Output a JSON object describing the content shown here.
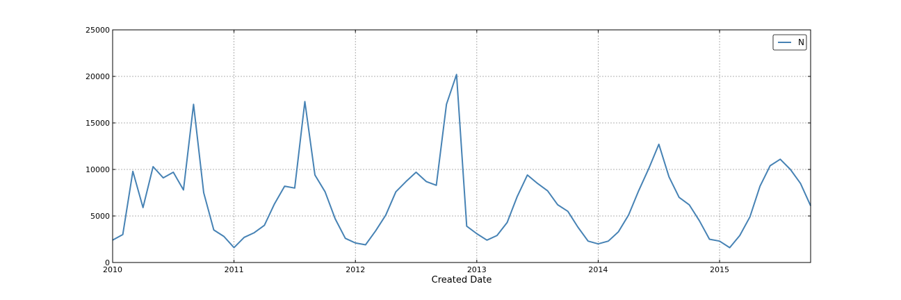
{
  "chart_data": {
    "type": "line",
    "xlabel": "Created Date",
    "ylabel": "",
    "xlim": [
      "2010-01",
      "2015-10"
    ],
    "ylim": [
      0,
      25000
    ],
    "yticks": [
      "0",
      "5000",
      "10000",
      "15000",
      "20000",
      "25000"
    ],
    "xticks": [
      "2010",
      "2011",
      "2012",
      "2013",
      "2014",
      "2015"
    ],
    "grid": true,
    "legend_position": "top-right",
    "line_color": "#4682b4",
    "series": [
      {
        "name": "N",
        "x": [
          "2010-01",
          "2010-02",
          "2010-03",
          "2010-04",
          "2010-05",
          "2010-06",
          "2010-07",
          "2010-08",
          "2010-09",
          "2010-10",
          "2010-11",
          "2010-12",
          "2011-01",
          "2011-02",
          "2011-03",
          "2011-04",
          "2011-05",
          "2011-06",
          "2011-07",
          "2011-08",
          "2011-09",
          "2011-10",
          "2011-11",
          "2011-12",
          "2012-01",
          "2012-02",
          "2012-03",
          "2012-04",
          "2012-05",
          "2012-06",
          "2012-07",
          "2012-08",
          "2012-09",
          "2012-10",
          "2012-11",
          "2012-12",
          "2013-01",
          "2013-02",
          "2013-03",
          "2013-04",
          "2013-05",
          "2013-06",
          "2013-07",
          "2013-08",
          "2013-09",
          "2013-10",
          "2013-11",
          "2013-12",
          "2014-01",
          "2014-02",
          "2014-03",
          "2014-04",
          "2014-05",
          "2014-06",
          "2014-07",
          "2014-08",
          "2014-09",
          "2014-10",
          "2014-11",
          "2014-12",
          "2015-01",
          "2015-02",
          "2015-03",
          "2015-04",
          "2015-05",
          "2015-06",
          "2015-07",
          "2015-08",
          "2015-09",
          "2015-10"
        ],
        "values": [
          2400,
          3000,
          9800,
          5900,
          10300,
          9100,
          9700,
          7800,
          17000,
          7500,
          3500,
          2800,
          1600,
          2700,
          3200,
          4000,
          6300,
          8200,
          8000,
          17300,
          9400,
          7600,
          4700,
          2600,
          2100,
          1900,
          3400,
          5100,
          7600,
          8700,
          9700,
          8700,
          8300,
          17000,
          20200,
          3900,
          3100,
          2400,
          2900,
          4300,
          7100,
          9400,
          8500,
          7700,
          6200,
          5500,
          3800,
          2300,
          2000,
          2300,
          3300,
          5100,
          7700,
          10100,
          12700,
          9200,
          7000,
          6200,
          4500,
          2500,
          2300,
          1600,
          2900,
          4900,
          8200,
          10400,
          11100,
          10000,
          8500,
          6100
        ]
      }
    ]
  }
}
